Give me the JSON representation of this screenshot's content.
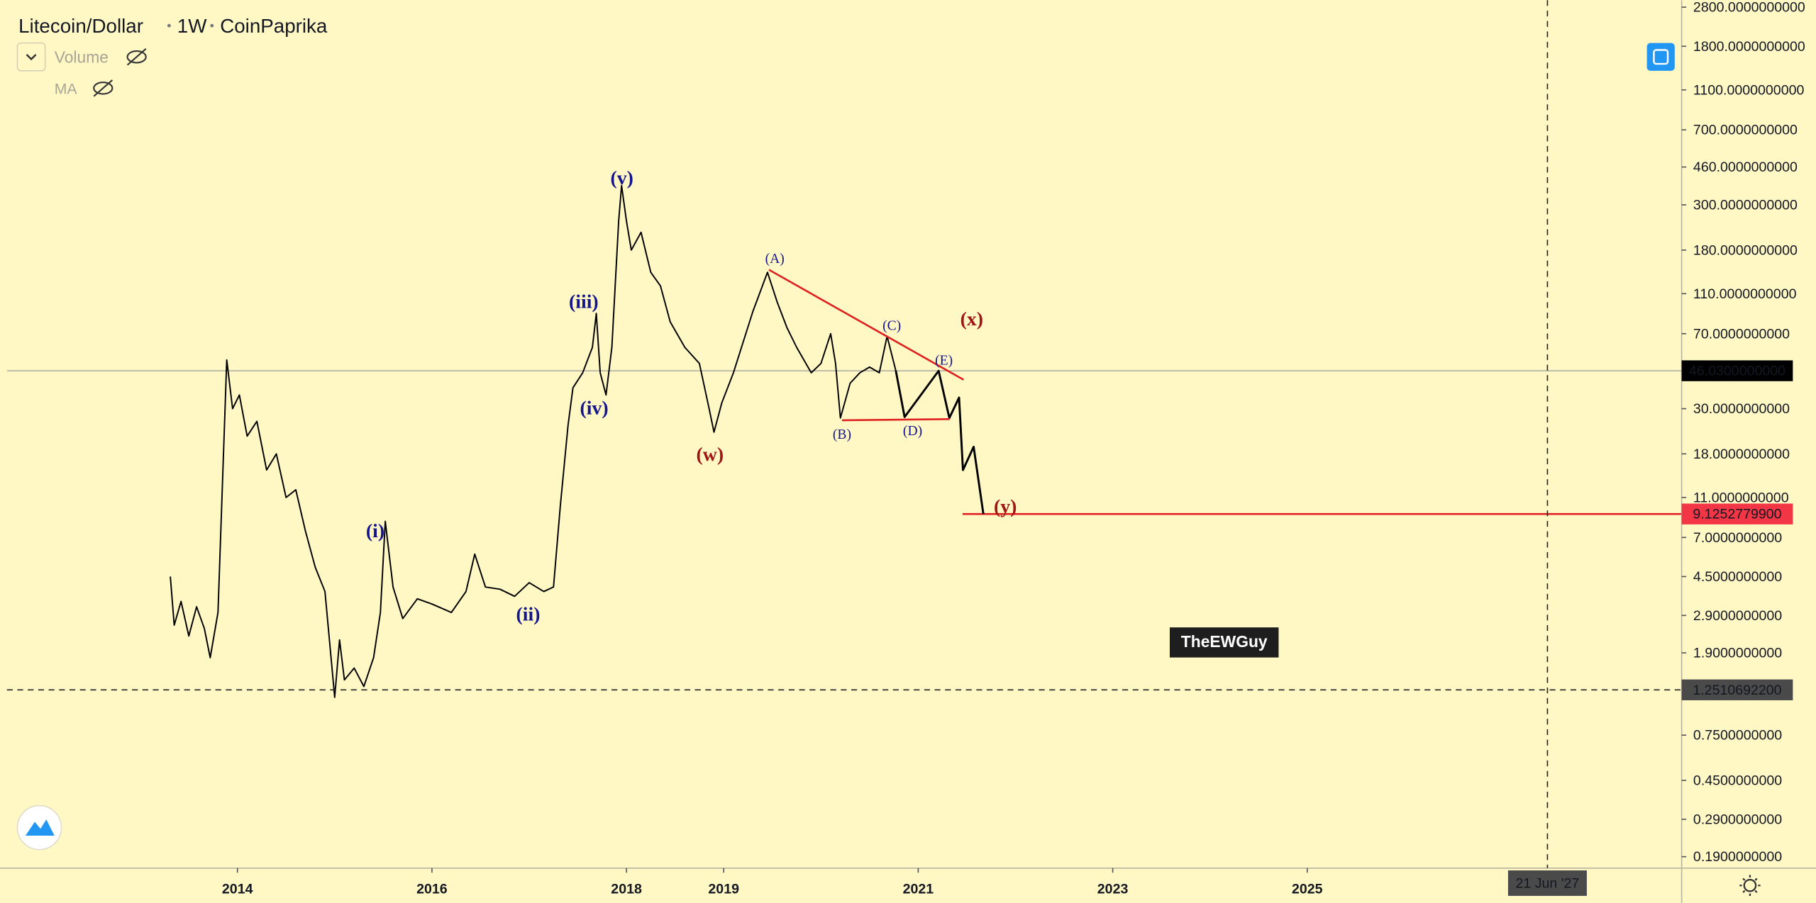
{
  "chart_data": {
    "type": "line",
    "symbol": "Litecoin/Dollar",
    "interval": "1W",
    "source": "CoinPaprika",
    "indicators": [
      "Volume",
      "MA"
    ],
    "watermark": "TheEWGuy",
    "log_scale": true,
    "xlim": [
      2011.63,
      2028.85
    ],
    "ylim": [
      0.167,
      3030
    ],
    "xticks": [
      2014,
      2016,
      2018,
      2019,
      2021,
      2023,
      2025
    ],
    "yticks": [
      {
        "value": 2800,
        "label": "2800.0000000000"
      },
      {
        "value": 1800,
        "label": "1800.0000000000"
      },
      {
        "value": 1100,
        "label": "1100.0000000000"
      },
      {
        "value": 700,
        "label": "700.0000000000"
      },
      {
        "value": 460,
        "label": "460.0000000000"
      },
      {
        "value": 300,
        "label": "300.0000000000"
      },
      {
        "value": 180,
        "label": "180.0000000000"
      },
      {
        "value": 110,
        "label": "110.0000000000"
      },
      {
        "value": 70,
        "label": "70.0000000000"
      },
      {
        "value": 30,
        "label": "30.0000000000"
      },
      {
        "value": 18,
        "label": "18.0000000000"
      },
      {
        "value": 11,
        "label": "11.0000000000"
      },
      {
        "value": 7,
        "label": "7.0000000000"
      },
      {
        "value": 4.5,
        "label": "4.5000000000"
      },
      {
        "value": 2.9,
        "label": "2.9000000000"
      },
      {
        "value": 1.9,
        "label": "1.9000000000"
      },
      {
        "value": 0.75,
        "label": "0.7500000000"
      },
      {
        "value": 0.45,
        "label": "0.4500000000"
      },
      {
        "value": 0.29,
        "label": "0.2900000000"
      },
      {
        "value": 0.19,
        "label": "0.1900000000"
      }
    ],
    "series": [
      {
        "color": "#000000",
        "x": [
          2013.31,
          2013.35,
          2013.42,
          2013.5,
          2013.58,
          2013.66,
          2013.72,
          2013.8,
          2013.89,
          2013.95,
          2014.02,
          2014.1,
          2014.2,
          2014.3,
          2014.4,
          2014.5,
          2014.6,
          2014.7,
          2014.8,
          2014.9,
          2015.0,
          2015.05,
          2015.1,
          2015.2,
          2015.3,
          2015.4,
          2015.47,
          2015.52,
          2015.6,
          2015.7,
          2015.85,
          2016.0,
          2016.2,
          2016.35,
          2016.44,
          2016.55,
          2016.7,
          2016.85,
          2017.0,
          2017.15,
          2017.25,
          2017.32,
          2017.4,
          2017.45,
          2017.55,
          2017.65,
          2017.69,
          2017.73,
          2017.79,
          2017.85,
          2017.92,
          2017.95,
          2018.0,
          2018.05,
          2018.15,
          2018.25,
          2018.35,
          2018.45,
          2018.6,
          2018.75,
          2018.85,
          2018.9,
          2018.98,
          2019.1,
          2019.3,
          2019.45,
          2019.55,
          2019.65,
          2019.75,
          2019.9,
          2020.0,
          2020.1,
          2020.15,
          2020.2,
          2020.3,
          2020.4,
          2020.5,
          2020.6,
          2020.68,
          2020.77
        ],
        "values": [
          4.5,
          2.6,
          3.4,
          2.3,
          3.2,
          2.5,
          1.8,
          3.0,
          52,
          30,
          35,
          22,
          26,
          15,
          18,
          11,
          12,
          7.5,
          5,
          3.8,
          1.15,
          2.2,
          1.4,
          1.6,
          1.3,
          1.8,
          3.0,
          8.4,
          4.0,
          2.8,
          3.5,
          3.3,
          3.0,
          3.8,
          5.8,
          4.0,
          3.9,
          3.6,
          4.2,
          3.8,
          4.0,
          10,
          25,
          38,
          45,
          60,
          88,
          45,
          35,
          60,
          250,
          373,
          250,
          180,
          220,
          140,
          120,
          80,
          60,
          50,
          30,
          23,
          32,
          45,
          90,
          140,
          100,
          75,
          60,
          45,
          50,
          70,
          50,
          27,
          40,
          45,
          48,
          45,
          68,
          46.03
        ]
      },
      {
        "color": "#000000",
        "x": [
          2020.77,
          2020.86,
          2021.21,
          2021.32,
          2021.42,
          2021.46,
          2021.57,
          2021.67
        ],
        "values": [
          46.03,
          27.3,
          46,
          27,
          34,
          15,
          19.5,
          9.125
        ]
      }
    ],
    "price_lines": [
      {
        "value": 46.03,
        "label": "46.0300000000",
        "color": "#000000",
        "line_color": "#9a9a9a"
      },
      {
        "value": 9.12527799,
        "label": "9.1252779900",
        "color": "#f23645",
        "line_color": "#e02020"
      }
    ],
    "crosshair": {
      "x": 2027.47,
      "x_label": "21 Jun '27",
      "y": 1.25106922,
      "y_label": "1.2510692200"
    },
    "annotations": [
      {
        "text": "(i)",
        "color": "#14148c"
      },
      {
        "text": "(ii)",
        "color": "#14148c"
      },
      {
        "text": "(iii)",
        "color": "#14148c"
      },
      {
        "text": "(iv)",
        "color": "#14148c"
      },
      {
        "text": "(v)",
        "color": "#14148c"
      },
      {
        "text": "(w)",
        "color": "#a01414"
      },
      {
        "text": "(x)",
        "color": "#a01414"
      },
      {
        "text": "(y)",
        "color": "#a01414"
      },
      {
        "text": "(A)",
        "color": "#14148c"
      },
      {
        "text": "(B)",
        "color": "#14148c"
      },
      {
        "text": "(C)",
        "color": "#14148c"
      },
      {
        "text": "(D)",
        "color": "#14148c"
      },
      {
        "text": "(E)",
        "color": "#14148c"
      }
    ]
  }
}
